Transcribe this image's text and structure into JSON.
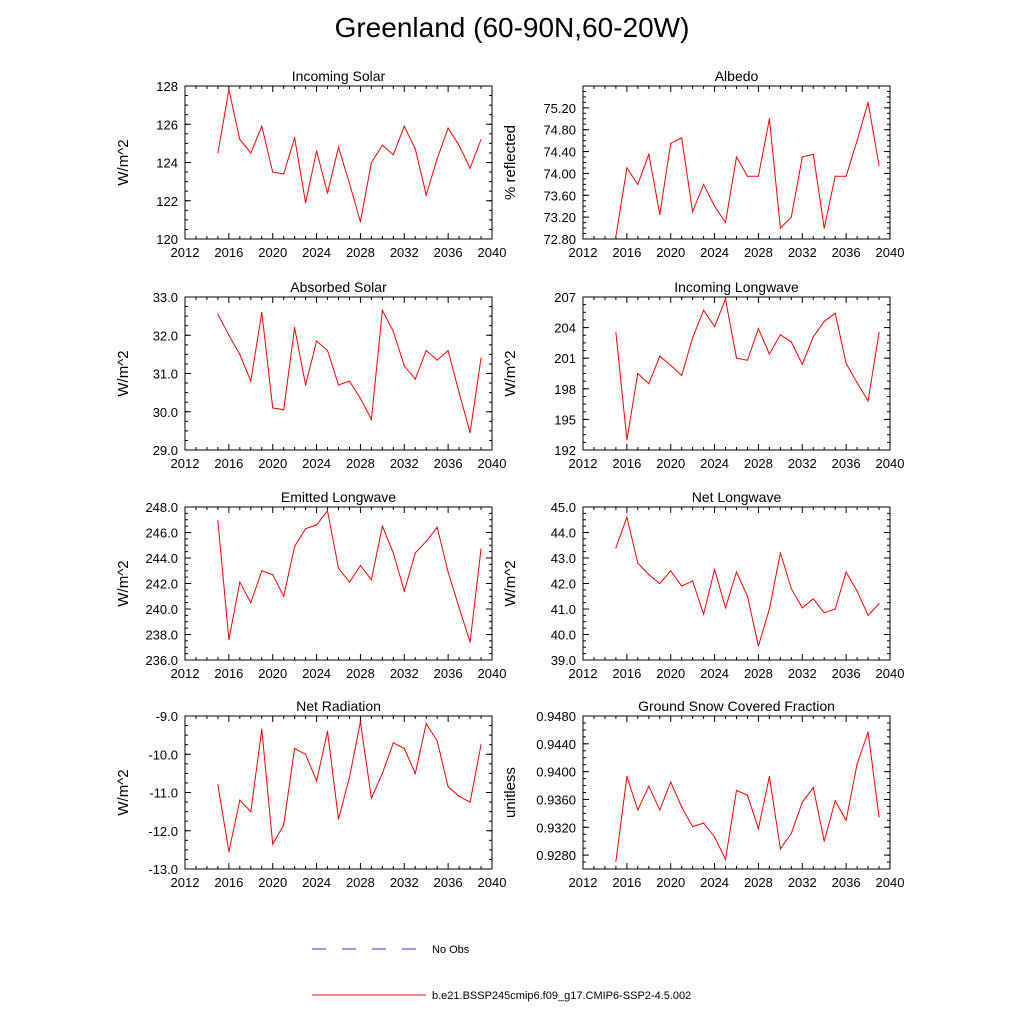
{
  "title": "Greenland (60-90N,60-20W)",
  "colors": {
    "model": "#ff0000",
    "obs": "#3333cc",
    "axis": "#000000"
  },
  "legend": {
    "obs_label": "No Obs",
    "model_label": "b.e21.BSSP245cmip6.f09_g17.CMIP6-SSP2-4.5.002"
  },
  "chart_data": [
    {
      "type": "line",
      "title": "Incoming Solar",
      "xlabel": "",
      "ylabel": "W/m^2",
      "xlim": [
        2012,
        2040
      ],
      "ylim": [
        120,
        128
      ],
      "xticks": [
        "2012",
        "2016",
        "2020",
        "2024",
        "2028",
        "2032",
        "2036",
        "2040"
      ],
      "yticks": [
        "120",
        "122",
        "124",
        "126",
        "128"
      ],
      "x": [
        2015,
        2016,
        2017,
        2018,
        2019,
        2020,
        2021,
        2022,
        2023,
        2024,
        2025,
        2026,
        2027,
        2028,
        2029,
        2030,
        2031,
        2032,
        2033,
        2034,
        2035,
        2036,
        2037,
        2038,
        2039
      ],
      "series": [
        {
          "name": "b.e21.BSSP245cmip6.f09_g17.CMIP6-SSP2-4.5.002",
          "values": [
            124.5,
            127.8,
            125.2,
            124.5,
            125.9,
            123.5,
            123.4,
            125.3,
            121.9,
            124.6,
            122.4,
            124.8,
            122.9,
            120.9,
            124.0,
            124.9,
            124.4,
            125.9,
            124.7,
            122.3,
            124.2,
            125.8,
            124.9,
            123.7,
            125.2
          ]
        }
      ]
    },
    {
      "type": "line",
      "title": "Albedo",
      "xlabel": "",
      "ylabel": "% reflected",
      "xlim": [
        2012,
        2040
      ],
      "ylim": [
        72.8,
        75.6
      ],
      "xticks": [
        "2012",
        "2016",
        "2020",
        "2024",
        "2028",
        "2032",
        "2036",
        "2040"
      ],
      "yticks": [
        "72.80",
        "73.20",
        "73.60",
        "74.00",
        "74.40",
        "74.80",
        "75.20"
      ],
      "x": [
        2015,
        2016,
        2017,
        2018,
        2019,
        2020,
        2021,
        2022,
        2023,
        2024,
        2025,
        2026,
        2027,
        2028,
        2029,
        2030,
        2031,
        2032,
        2033,
        2034,
        2035,
        2036,
        2037,
        2038,
        2039
      ],
      "series": [
        {
          "name": "b.e21.BSSP245cmip6.f09_g17.CMIP6-SSP2-4.5.002",
          "values": [
            72.85,
            74.1,
            73.8,
            74.35,
            73.25,
            74.55,
            74.65,
            73.3,
            73.8,
            73.4,
            73.1,
            74.3,
            73.95,
            73.95,
            75.0,
            73.0,
            73.2,
            74.3,
            74.35,
            73.0,
            73.95,
            73.95,
            74.6,
            75.3,
            74.15
          ]
        }
      ]
    },
    {
      "type": "line",
      "title": "Absorbed Solar",
      "xlabel": "",
      "ylabel": "W/m^2",
      "xlim": [
        2012,
        2040
      ],
      "ylim": [
        29.0,
        33.0
      ],
      "xticks": [
        "2012",
        "2016",
        "2020",
        "2024",
        "2028",
        "2032",
        "2036",
        "2040"
      ],
      "yticks": [
        "29.0",
        "30.0",
        "31.0",
        "32.0",
        "33.0"
      ],
      "x": [
        2015,
        2016,
        2017,
        2018,
        2019,
        2020,
        2021,
        2022,
        2023,
        2024,
        2025,
        2026,
        2027,
        2028,
        2029,
        2030,
        2031,
        2032,
        2033,
        2034,
        2035,
        2036,
        2037,
        2038,
        2039
      ],
      "series": [
        {
          "name": "b.e21.BSSP245cmip6.f09_g17.CMIP6-SSP2-4.5.002",
          "values": [
            32.55,
            32.0,
            31.5,
            30.8,
            32.6,
            30.1,
            30.05,
            32.2,
            30.7,
            31.85,
            31.6,
            30.7,
            30.8,
            30.35,
            29.8,
            32.65,
            32.1,
            31.2,
            30.85,
            31.6,
            31.35,
            31.6,
            30.5,
            29.45,
            31.4
          ]
        }
      ]
    },
    {
      "type": "line",
      "title": "Incoming Longwave",
      "xlabel": "",
      "ylabel": "W/m^2",
      "xlim": [
        2012,
        2040
      ],
      "ylim": [
        192,
        207
      ],
      "xticks": [
        "2012",
        "2016",
        "2020",
        "2024",
        "2028",
        "2032",
        "2036",
        "2040"
      ],
      "yticks": [
        "192",
        "195",
        "198",
        "201",
        "204",
        "207"
      ],
      "x": [
        2015,
        2016,
        2017,
        2018,
        2019,
        2020,
        2021,
        2022,
        2023,
        2024,
        2025,
        2026,
        2027,
        2028,
        2029,
        2030,
        2031,
        2032,
        2033,
        2034,
        2035,
        2036,
        2037,
        2038,
        2039
      ],
      "series": [
        {
          "name": "b.e21.BSSP245cmip6.f09_g17.CMIP6-SSP2-4.5.002",
          "values": [
            203.5,
            193.0,
            199.5,
            198.5,
            201.2,
            200.3,
            199.3,
            203.0,
            205.7,
            204.1,
            206.8,
            201.0,
            200.8,
            203.9,
            201.4,
            203.3,
            202.6,
            200.4,
            203.1,
            204.6,
            205.4,
            200.5,
            198.6,
            196.8,
            203.5
          ]
        }
      ]
    },
    {
      "type": "line",
      "title": "Emitted Longwave",
      "xlabel": "",
      "ylabel": "W/m^2",
      "xlim": [
        2012,
        2040
      ],
      "ylim": [
        236.0,
        248.0
      ],
      "xticks": [
        "2012",
        "2016",
        "2020",
        "2024",
        "2028",
        "2032",
        "2036",
        "2040"
      ],
      "yticks": [
        "236.0",
        "238.0",
        "240.0",
        "242.0",
        "244.0",
        "246.0",
        "248.0"
      ],
      "x": [
        2015,
        2016,
        2017,
        2018,
        2019,
        2020,
        2021,
        2022,
        2023,
        2024,
        2025,
        2026,
        2027,
        2028,
        2029,
        2030,
        2031,
        2032,
        2033,
        2034,
        2035,
        2036,
        2037,
        2038,
        2039
      ],
      "series": [
        {
          "name": "b.e21.BSSP245cmip6.f09_g17.CMIP6-SSP2-4.5.002",
          "values": [
            246.9,
            237.6,
            242.1,
            240.5,
            243.0,
            242.7,
            241.0,
            244.9,
            246.3,
            246.6,
            247.7,
            243.2,
            242.1,
            243.4,
            242.3,
            246.5,
            244.4,
            241.4,
            244.4,
            245.3,
            246.4,
            242.9,
            240.1,
            237.4,
            244.7
          ]
        }
      ]
    },
    {
      "type": "line",
      "title": "Net Longwave",
      "xlabel": "",
      "ylabel": "W/m^2",
      "xlim": [
        2012,
        2040
      ],
      "ylim": [
        39.0,
        45.0
      ],
      "xticks": [
        "2012",
        "2016",
        "2020",
        "2024",
        "2028",
        "2032",
        "2036",
        "2040"
      ],
      "yticks": [
        "39.0",
        "40.0",
        "41.0",
        "42.0",
        "43.0",
        "44.0",
        "45.0"
      ],
      "x": [
        2015,
        2016,
        2017,
        2018,
        2019,
        2020,
        2021,
        2022,
        2023,
        2024,
        2025,
        2026,
        2027,
        2028,
        2029,
        2030,
        2031,
        2032,
        2033,
        2034,
        2035,
        2036,
        2037,
        2038,
        2039
      ],
      "series": [
        {
          "name": "b.e21.BSSP245cmip6.f09_g17.CMIP6-SSP2-4.5.002",
          "values": [
            43.4,
            44.6,
            42.8,
            42.35,
            42.0,
            42.5,
            41.9,
            42.1,
            40.8,
            42.55,
            41.05,
            42.45,
            41.5,
            39.55,
            41.0,
            43.2,
            41.8,
            41.05,
            41.4,
            40.85,
            41.0,
            42.45,
            41.7,
            40.75,
            41.2
          ]
        }
      ]
    },
    {
      "type": "line",
      "title": "Net Radiation",
      "xlabel": "",
      "ylabel": "W/m^2",
      "xlim": [
        2012,
        2040
      ],
      "ylim": [
        -13.0,
        -9.0
      ],
      "xticks": [
        "2012",
        "2016",
        "2020",
        "2024",
        "2028",
        "2032",
        "2036",
        "2040"
      ],
      "yticks": [
        "-13.0",
        "-12.0",
        "-11.0",
        "-10.0",
        "-9.0"
      ],
      "x": [
        2015,
        2016,
        2017,
        2018,
        2019,
        2020,
        2021,
        2022,
        2023,
        2024,
        2025,
        2026,
        2027,
        2028,
        2029,
        2030,
        2031,
        2032,
        2033,
        2034,
        2035,
        2036,
        2037,
        2038,
        2039
      ],
      "series": [
        {
          "name": "b.e21.BSSP245cmip6.f09_g17.CMIP6-SSP2-4.5.002",
          "values": [
            -10.8,
            -12.55,
            -11.2,
            -11.5,
            -9.35,
            -12.35,
            -11.85,
            -9.85,
            -10.0,
            -10.7,
            -9.4,
            -11.7,
            -10.6,
            -9.15,
            -11.15,
            -10.5,
            -9.7,
            -9.85,
            -10.5,
            -9.2,
            -9.65,
            -10.85,
            -11.1,
            -11.25,
            -9.75
          ]
        }
      ]
    },
    {
      "type": "line",
      "title": "Ground Snow Covered Fraction",
      "xlabel": "",
      "ylabel": "unitless",
      "xlim": [
        2012,
        2040
      ],
      "ylim": [
        0.926,
        0.948
      ],
      "xticks": [
        "2012",
        "2016",
        "2020",
        "2024",
        "2028",
        "2032",
        "2036",
        "2040"
      ],
      "yticks": [
        "0.9280",
        "0.9320",
        "0.9360",
        "0.9400",
        "0.9440",
        "0.9480"
      ],
      "x": [
        2015,
        2016,
        2017,
        2018,
        2019,
        2020,
        2021,
        2022,
        2023,
        2024,
        2025,
        2026,
        2027,
        2028,
        2029,
        2030,
        2031,
        2032,
        2033,
        2034,
        2035,
        2036,
        2037,
        2038,
        2039
      ],
      "series": [
        {
          "name": "b.e21.BSSP245cmip6.f09_g17.CMIP6-SSP2-4.5.002",
          "values": [
            0.9271,
            0.9393,
            0.9345,
            0.9379,
            0.9345,
            0.9385,
            0.9349,
            0.9321,
            0.9326,
            0.9306,
            0.9274,
            0.9373,
            0.9366,
            0.9318,
            0.9393,
            0.9289,
            0.9311,
            0.9356,
            0.9377,
            0.93,
            0.9358,
            0.933,
            0.9411,
            0.9457,
            0.9335
          ]
        }
      ]
    }
  ]
}
